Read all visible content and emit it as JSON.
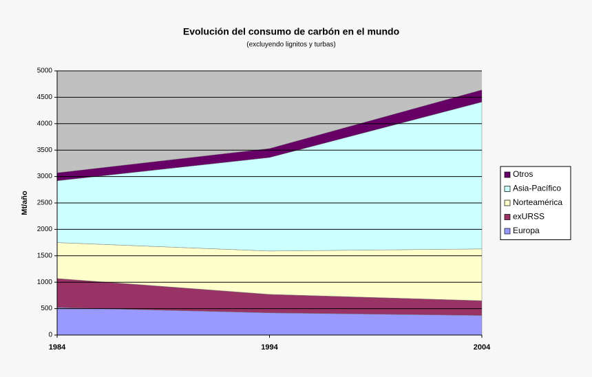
{
  "chart_data": {
    "type": "stacked_area",
    "title": "Evolución del consumo de carbón en el mundo",
    "subtitle": "(excluyendo lignitos y turbas)",
    "y_label": "Mt/año",
    "categories": [
      "1984",
      "1994",
      "2004"
    ],
    "series": [
      {
        "name": "Europa",
        "color": "#9999ff",
        "values": [
          520,
          420,
          370
        ]
      },
      {
        "name": "exURSS",
        "color": "#993366",
        "values": [
          550,
          350,
          280
        ]
      },
      {
        "name": "Norteamérica",
        "color": "#ffffcc",
        "values": [
          680,
          820,
          980
        ]
      },
      {
        "name": "Asia-Pacífico",
        "color": "#ccffff",
        "values": [
          1170,
          1770,
          2780
        ]
      },
      {
        "name": "Otros",
        "color": "#660066",
        "values": [
          150,
          170,
          230
        ]
      }
    ],
    "ylim": [
      0,
      5000
    ],
    "yticks": [
      0,
      500,
      1000,
      1500,
      2000,
      2500,
      3000,
      3500,
      4000,
      4500,
      5000
    ],
    "grid": true,
    "plot_background": "#c0c0c0",
    "legend": "right"
  }
}
